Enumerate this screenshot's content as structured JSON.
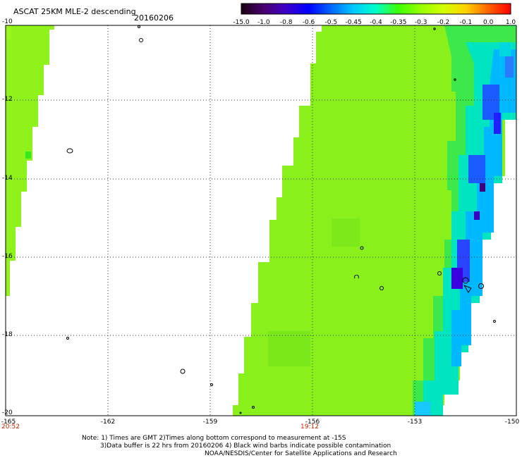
{
  "header": {
    "title": "ASCAT 25KM MLE-2 descending",
    "date": "20160206"
  },
  "colorbar": {
    "labels": [
      "-15.0",
      "-1.0",
      "-0.8",
      "-0.6",
      "-0.5",
      "-0.45",
      "-0.4",
      "-0.35",
      "-0.3",
      "-0.2",
      "-0.1",
      "0.0",
      "1.0"
    ],
    "colors": [
      "#1a0010",
      "#4a0070",
      "#3d00c8",
      "#0000ff",
      "#0066ff",
      "#00c8ff",
      "#00ffc8",
      "#3cff00",
      "#96ff00",
      "#d2ff00",
      "#ffd200",
      "#ff6400",
      "#ff0000"
    ]
  },
  "map": {
    "lat_labels": [
      "-10",
      "-12",
      "-14",
      "-16",
      "-18",
      "-20"
    ],
    "lon_labels": [
      "-165",
      "-162",
      "-159",
      "-156",
      "-153",
      "-150"
    ],
    "time_labels": [
      "20:52",
      "19:12"
    ]
  },
  "footer": {
    "line1": "Note: 1) Times are GMT 2)Times along bottom correspond to measurement at -15S",
    "line2": "3)Data buffer is 22 hrs from 20160206 4) Black wind barbs indicate possible contamination",
    "line3": "NOAA/NESDIS/Center for Satellite Applications and Research"
  }
}
